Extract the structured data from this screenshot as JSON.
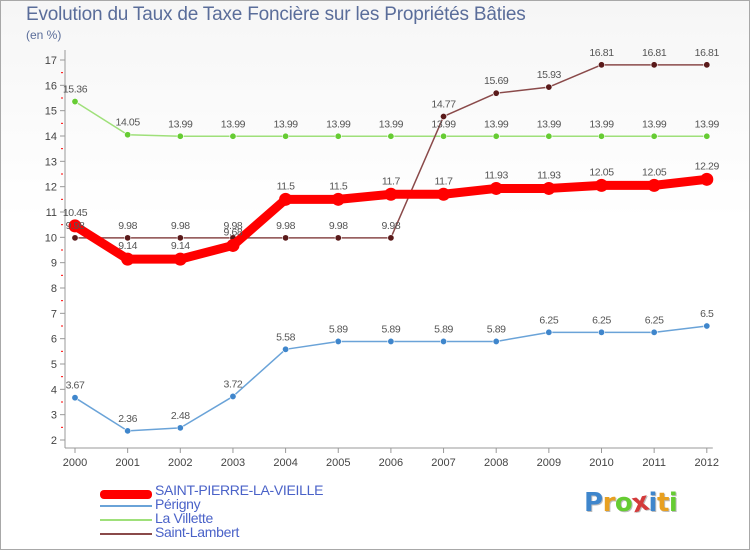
{
  "title": "Evolution du Taux de Taxe Foncière sur les Propriétés Bâties",
  "unit_label": "(en %)",
  "logo_text": "Proxiti",
  "chart_data": {
    "type": "line",
    "title": "Evolution du Taux de Taxe Foncière sur les Propriétés Bâties",
    "ylabel": "(en %)",
    "xlabel": "",
    "categories": [
      "2000",
      "2001",
      "2002",
      "2003",
      "2004",
      "2005",
      "2006",
      "2007",
      "2008",
      "2009",
      "2010",
      "2011",
      "2012"
    ],
    "ylim": [
      2,
      17
    ],
    "yticks": [
      2,
      3,
      4,
      5,
      6,
      7,
      8,
      9,
      10,
      11,
      12,
      13,
      14,
      15,
      16,
      17
    ],
    "grid": false,
    "legend_position": "bottom-left",
    "series": [
      {
        "name": "SAINT-PIERRE-LA-VIEILLE",
        "color": "#ff0000",
        "emphasis": true,
        "values": [
          10.45,
          9.14,
          9.14,
          9.68,
          11.5,
          11.5,
          11.7,
          11.7,
          11.93,
          11.93,
          12.05,
          12.05,
          12.29
        ],
        "labels": [
          "10.45",
          "9.14",
          "9.14",
          "9.68",
          "11.5",
          "11.5",
          "11.7",
          "11.7",
          "11.93",
          "11.93",
          "12.05",
          "12.05",
          "12.29"
        ]
      },
      {
        "name": "Périgny",
        "color": "#6aa3d8",
        "point_color": "#3f86cc",
        "values": [
          3.67,
          2.36,
          2.48,
          3.72,
          5.58,
          5.89,
          5.89,
          5.89,
          5.89,
          6.25,
          6.25,
          6.25,
          6.5
        ],
        "labels": [
          "3.67",
          "2.36",
          "2.48",
          "3.72",
          "5.58",
          "5.89",
          "5.89",
          "5.89",
          "5.89",
          "6.25",
          "6.25",
          "6.25",
          "6.5"
        ]
      },
      {
        "name": "La Villette",
        "color": "#9fe07a",
        "point_color": "#66cc33",
        "values": [
          15.36,
          14.05,
          13.99,
          13.99,
          13.99,
          13.99,
          13.99,
          13.99,
          13.99,
          13.99,
          13.99,
          13.99,
          13.99
        ],
        "labels": [
          "15.36",
          "14.05",
          "13.99",
          "13.99",
          "13.99",
          "13.99",
          "13.99",
          "13.99",
          "13.99",
          "13.99",
          "13.99",
          "13.99",
          "13.99"
        ]
      },
      {
        "name": "Saint-Lambert",
        "color": "#8a4a4a",
        "point_color": "#5a1a1a",
        "values": [
          9.98,
          9.98,
          9.98,
          9.98,
          9.98,
          9.98,
          9.98,
          14.77,
          15.69,
          15.93,
          16.81,
          16.81,
          16.81
        ],
        "labels": [
          "9.98",
          "9.98",
          "9.98",
          "9.98",
          "9.98",
          "9.98",
          "9.98",
          "14.77",
          "15.69",
          "15.93",
          "16.81",
          "16.81",
          "16.81"
        ]
      }
    ]
  }
}
